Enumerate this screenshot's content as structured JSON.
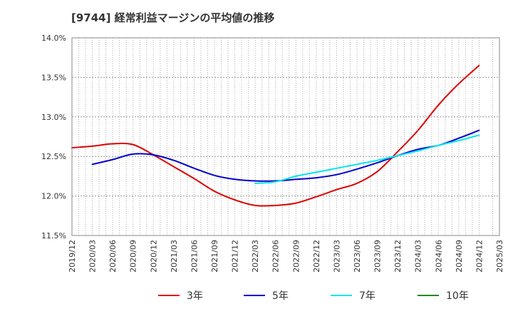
{
  "chart_data": {
    "type": "line",
    "title": "[9744]  経常利益マージンの平均値の推移",
    "xlabel": "",
    "ylabel": "",
    "ylim": [
      11.5,
      14.0
    ],
    "y_ticks": [
      "11.5%",
      "12.0%",
      "12.5%",
      "13.0%",
      "13.5%",
      "14.0%"
    ],
    "x_ticks": [
      "2019/12",
      "2020/03",
      "2020/06",
      "2020/09",
      "2020/12",
      "2021/03",
      "2021/06",
      "2021/09",
      "2021/12",
      "2022/03",
      "2022/06",
      "2022/09",
      "2022/12",
      "2023/03",
      "2023/06",
      "2023/09",
      "2023/12",
      "2024/03",
      "2024/06",
      "2024/09",
      "2024/12",
      "2025/03"
    ],
    "grid": true,
    "legend_position": "bottom",
    "series": [
      {
        "name": "3年",
        "color": "#dd0000",
        "points": [
          [
            "2019/12",
            12.61
          ],
          [
            "2020/03",
            12.63
          ],
          [
            "2020/06",
            12.66
          ],
          [
            "2020/09",
            12.65
          ],
          [
            "2020/12",
            12.52
          ],
          [
            "2021/03",
            12.37
          ],
          [
            "2021/06",
            12.22
          ],
          [
            "2021/09",
            12.06
          ],
          [
            "2021/12",
            11.95
          ],
          [
            "2022/03",
            11.88
          ],
          [
            "2022/06",
            11.88
          ],
          [
            "2022/09",
            11.91
          ],
          [
            "2022/12",
            11.99
          ],
          [
            "2023/03",
            12.08
          ],
          [
            "2023/06",
            12.16
          ],
          [
            "2023/09",
            12.31
          ],
          [
            "2023/12",
            12.56
          ],
          [
            "2024/03",
            12.83
          ],
          [
            "2024/06",
            13.15
          ],
          [
            "2024/09",
            13.42
          ],
          [
            "2024/12",
            13.65
          ]
        ]
      },
      {
        "name": "5年",
        "color": "#0000cc",
        "points": [
          [
            "2020/03",
            12.4
          ],
          [
            "2020/06",
            12.46
          ],
          [
            "2020/09",
            12.53
          ],
          [
            "2020/12",
            12.52
          ],
          [
            "2021/03",
            12.45
          ],
          [
            "2021/06",
            12.35
          ],
          [
            "2021/09",
            12.26
          ],
          [
            "2021/12",
            12.21
          ],
          [
            "2022/03",
            12.19
          ],
          [
            "2022/06",
            12.19
          ],
          [
            "2022/09",
            12.21
          ],
          [
            "2022/12",
            12.23
          ],
          [
            "2023/03",
            12.27
          ],
          [
            "2023/06",
            12.34
          ],
          [
            "2023/09",
            12.42
          ],
          [
            "2023/12",
            12.51
          ],
          [
            "2024/03",
            12.59
          ],
          [
            "2024/06",
            12.64
          ],
          [
            "2024/09",
            12.73
          ],
          [
            "2024/12",
            12.83
          ]
        ]
      },
      {
        "name": "7年",
        "color": "#00e5ee",
        "points": [
          [
            "2022/03",
            12.16
          ],
          [
            "2022/06",
            12.18
          ],
          [
            "2022/09",
            12.25
          ],
          [
            "2022/12",
            12.3
          ],
          [
            "2023/03",
            12.35
          ],
          [
            "2023/06",
            12.4
          ],
          [
            "2023/09",
            12.45
          ],
          [
            "2023/12",
            12.51
          ],
          [
            "2024/03",
            12.57
          ],
          [
            "2024/06",
            12.64
          ],
          [
            "2024/09",
            12.7
          ],
          [
            "2024/12",
            12.77
          ]
        ]
      },
      {
        "name": "10年",
        "color": "#228b22",
        "points": []
      }
    ]
  }
}
